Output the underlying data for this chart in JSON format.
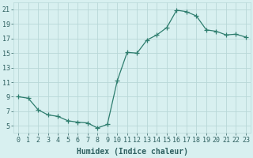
{
  "xlabel": "Humidex (Indice chaleur)",
  "x": [
    0,
    1,
    2,
    3,
    4,
    5,
    6,
    7,
    8,
    9,
    10,
    11,
    12,
    13,
    14,
    15,
    16,
    17,
    18,
    19,
    20,
    21,
    22,
    23
  ],
  "y": [
    9,
    8.8,
    7.2,
    6.5,
    6.3,
    5.7,
    5.5,
    5.4,
    4.7,
    5.2,
    11.2,
    15.1,
    15.0,
    16.8,
    17.5,
    18.5,
    20.9,
    20.7,
    20.1,
    18.2,
    18.0,
    17.5,
    17.6,
    17.2
  ],
  "line_color": "#2e7d6e",
  "marker": "+",
  "marker_size": 4,
  "bg_color": "#d8f0f0",
  "grid_color": "#b8d8d8",
  "text_color": "#2e6060",
  "ylim": [
    4,
    22
  ],
  "xlim": [
    -0.5,
    23.5
  ],
  "yticks": [
    5,
    7,
    9,
    11,
    13,
    15,
    17,
    19,
    21
  ],
  "xtick_labels": [
    "0",
    "1",
    "2",
    "3",
    "4",
    "5",
    "6",
    "7",
    "8",
    "9",
    "10",
    "11",
    "12",
    "13",
    "14",
    "15",
    "16",
    "17",
    "18",
    "19",
    "20",
    "21",
    "22",
    "23"
  ],
  "label_fontsize": 7,
  "tick_fontsize": 6
}
